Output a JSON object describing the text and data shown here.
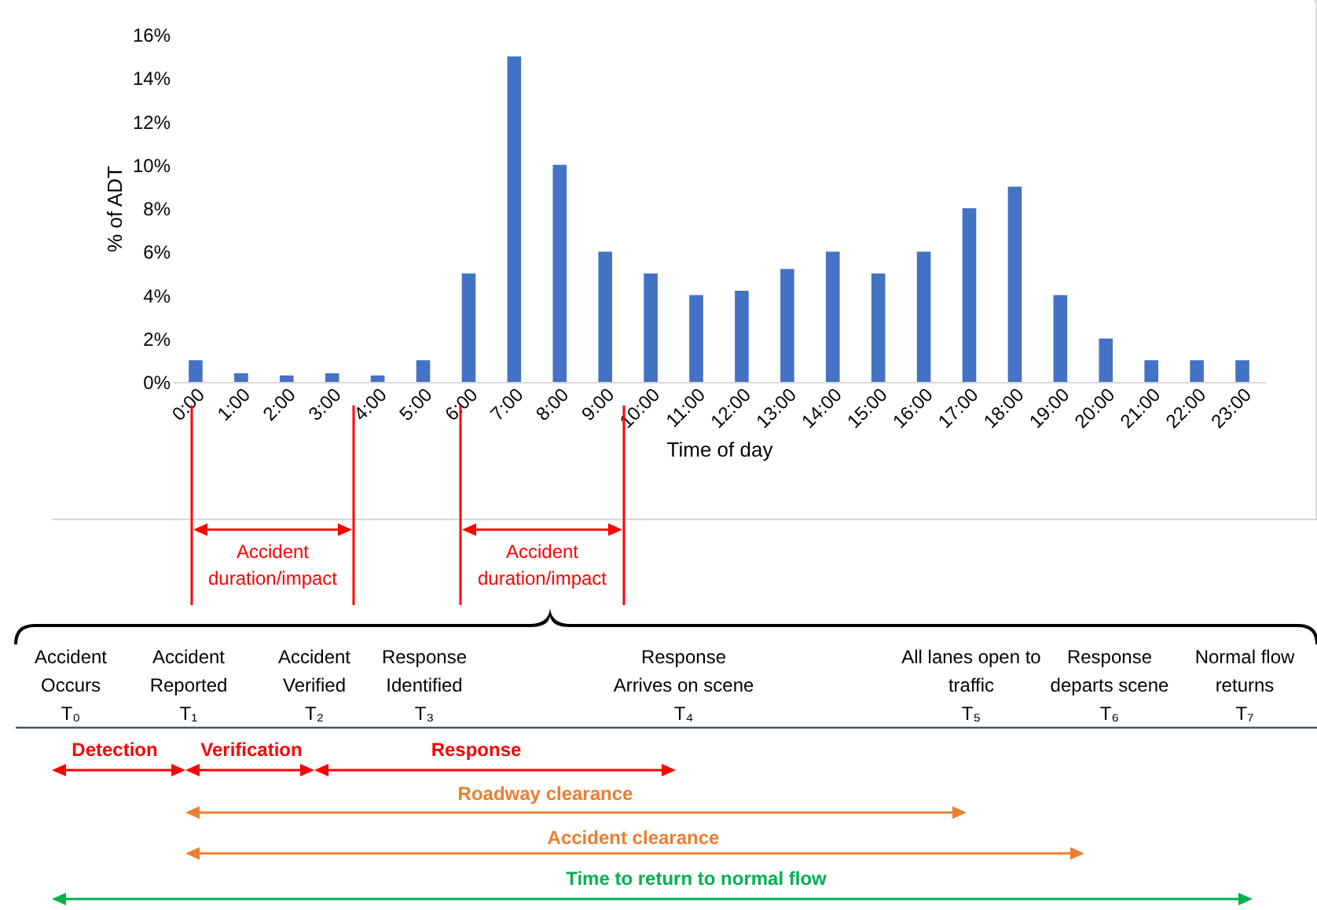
{
  "chart_data": {
    "type": "bar",
    "xlabel": "Time of day",
    "ylabel": "% of ADT",
    "color": "#4472c4",
    "categories": [
      "0:00",
      "1:00",
      "2:00",
      "3:00",
      "4:00",
      "5:00",
      "6:00",
      "7:00",
      "8:00",
      "9:00",
      "10:00",
      "11:00",
      "12:00",
      "13:00",
      "14:00",
      "15:00",
      "16:00",
      "17:00",
      "18:00",
      "19:00",
      "20:00",
      "21:00",
      "22:00",
      "23:00"
    ],
    "values": [
      1,
      0.4,
      0.3,
      0.4,
      0.3,
      1,
      5,
      15,
      10,
      6,
      5,
      4,
      4.2,
      5.2,
      6,
      5,
      6,
      8,
      9,
      4,
      2,
      1,
      1,
      1
    ],
    "ylim": [
      0,
      16
    ],
    "yticks": [
      {
        "value": 0,
        "label": "0%"
      },
      {
        "value": 2,
        "label": "2%"
      },
      {
        "value": 4,
        "label": "4%"
      },
      {
        "value": 6,
        "label": "6%"
      },
      {
        "value": 8,
        "label": "8%"
      },
      {
        "value": 10,
        "label": "10%"
      },
      {
        "value": 12,
        "label": "12%"
      },
      {
        "value": 14,
        "label": "14%"
      },
      {
        "value": 16,
        "label": "16%"
      }
    ],
    "grid": false,
    "annotations": [
      "Accident duration/impact",
      "Accident duration/impact",
      "Accident\nOccurs\nT₀",
      "Accident\nReported\nT₁",
      "Accident\nVerified\nT₂",
      "Response\nIdentified\nT₃",
      "Response\nArrives on scene\nT₄",
      "All lanes open to\ntraffic\nT₅",
      "Response\ndeparts scene\nT₆",
      "Normal flow\nreturns\nT₇",
      "Detection",
      "Verification",
      "Response",
      "Roadway clearance",
      "Accident clearance",
      "Time to return to normal flow"
    ]
  }
}
